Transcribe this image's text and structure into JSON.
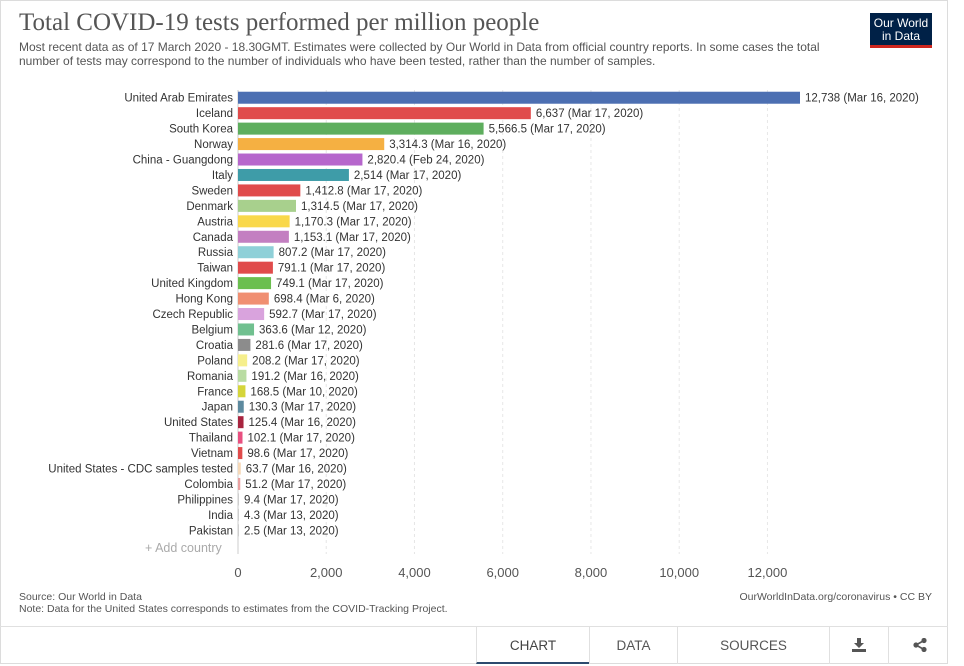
{
  "header": {
    "title": "Total COVID-19 tests performed per million people",
    "subtitle": "Most recent data as of 17 March 2020 - 18.30GMT. Estimates were collected by Our World in Data from official country reports. In some cases the total number of tests may correspond to the number of individuals who have been tested, rather than the number of samples.",
    "logo_line1": "Our World",
    "logo_line2": "in Data"
  },
  "controls": {
    "add_country": "+ Add country"
  },
  "footer": {
    "source": "Source: Our World in Data",
    "note": "Note: Data for the United States corresponds to estimates from the COVID-Tracking Project.",
    "credit": "OurWorldInData.org/coronavirus • CC BY"
  },
  "tabs": {
    "chart": "CHART",
    "data": "DATA",
    "sources": "SOURCES",
    "download_icon": "download-icon",
    "share_icon": "share-icon"
  },
  "colors": {
    "accent": "#2c4a6e",
    "logo_bg": "#002147",
    "logo_stripe": "#ce261e"
  },
  "chart_data": {
    "type": "bar",
    "orientation": "horizontal",
    "title": "Total COVID-19 tests performed per million people",
    "xlim": [
      0,
      12738
    ],
    "xticks": [
      0,
      2000,
      4000,
      6000,
      8000,
      10000,
      12000
    ],
    "xtick_labels": [
      "0",
      "2,000",
      "4,000",
      "6,000",
      "8,000",
      "10,000",
      "12,000"
    ],
    "grid": true,
    "categories": [
      "United Arab Emirates",
      "Iceland",
      "South Korea",
      "Norway",
      "China - Guangdong",
      "Italy",
      "Sweden",
      "Denmark",
      "Austria",
      "Canada",
      "Russia",
      "Taiwan",
      "United Kingdom",
      "Hong Kong",
      "Czech Republic",
      "Belgium",
      "Croatia",
      "Poland",
      "Romania",
      "France",
      "Japan",
      "United States",
      "Thailand",
      "Vietnam",
      "United States - CDC samples tested",
      "Colombia",
      "Philippines",
      "India",
      "Pakistan"
    ],
    "values": [
      12738,
      6637,
      5566.5,
      3314.3,
      2820.4,
      2514,
      1412.8,
      1314.5,
      1170.3,
      1153.1,
      807.2,
      791.1,
      749.1,
      698.4,
      592.7,
      363.6,
      281.6,
      208.2,
      191.2,
      168.5,
      130.3,
      125.4,
      102.1,
      98.6,
      63.7,
      51.2,
      9.4,
      4.3,
      2.5
    ],
    "value_labels": [
      "12,738 (Mar 16, 2020)",
      "6,637 (Mar 17, 2020)",
      "5,566.5 (Mar 17, 2020)",
      "3,314.3 (Mar 16, 2020)",
      "2,820.4 (Feb 24, 2020)",
      "2,514 (Mar 17, 2020)",
      "1,412.8 (Mar 17, 2020)",
      "1,314.5 (Mar 17, 2020)",
      "1,170.3 (Mar 17, 2020)",
      "1,153.1 (Mar 17, 2020)",
      "807.2 (Mar 17, 2020)",
      "791.1 (Mar 17, 2020)",
      "749.1 (Mar 17, 2020)",
      "698.4 (Mar 6, 2020)",
      "592.7 (Mar 17, 2020)",
      "363.6 (Mar 12, 2020)",
      "281.6 (Mar 17, 2020)",
      "208.2 (Mar 17, 2020)",
      "191.2 (Mar 16, 2020)",
      "168.5 (Mar 10, 2020)",
      "130.3 (Mar 17, 2020)",
      "125.4 (Mar 16, 2020)",
      "102.1 (Mar 17, 2020)",
      "98.6 (Mar 17, 2020)",
      "63.7 (Mar 16, 2020)",
      "51.2 (Mar 17, 2020)",
      "9.4 (Mar 17, 2020)",
      "4.3 (Mar 13, 2020)",
      "2.5 (Mar 13, 2020)"
    ],
    "bar_colors": [
      "#4c6fb2",
      "#e04b4b",
      "#5eae5e",
      "#f5b042",
      "#b666cc",
      "#3e9ca8",
      "#e04b4b",
      "#a8d08d",
      "#f9d84a",
      "#c37fc1",
      "#8fd0d8",
      "#e04b4b",
      "#6bbf4f",
      "#f08f72",
      "#d9a3dd",
      "#70c08f",
      "#8c8c8c",
      "#f6ef8c",
      "#b9dca2",
      "#d5d53a",
      "#5d8a9f",
      "#a8243f",
      "#e85080",
      "#e04b4b",
      "#f6d9b8",
      "#e9a0a0",
      "#cfcfcf",
      "#cfcfcf",
      "#cfcfcf"
    ]
  }
}
